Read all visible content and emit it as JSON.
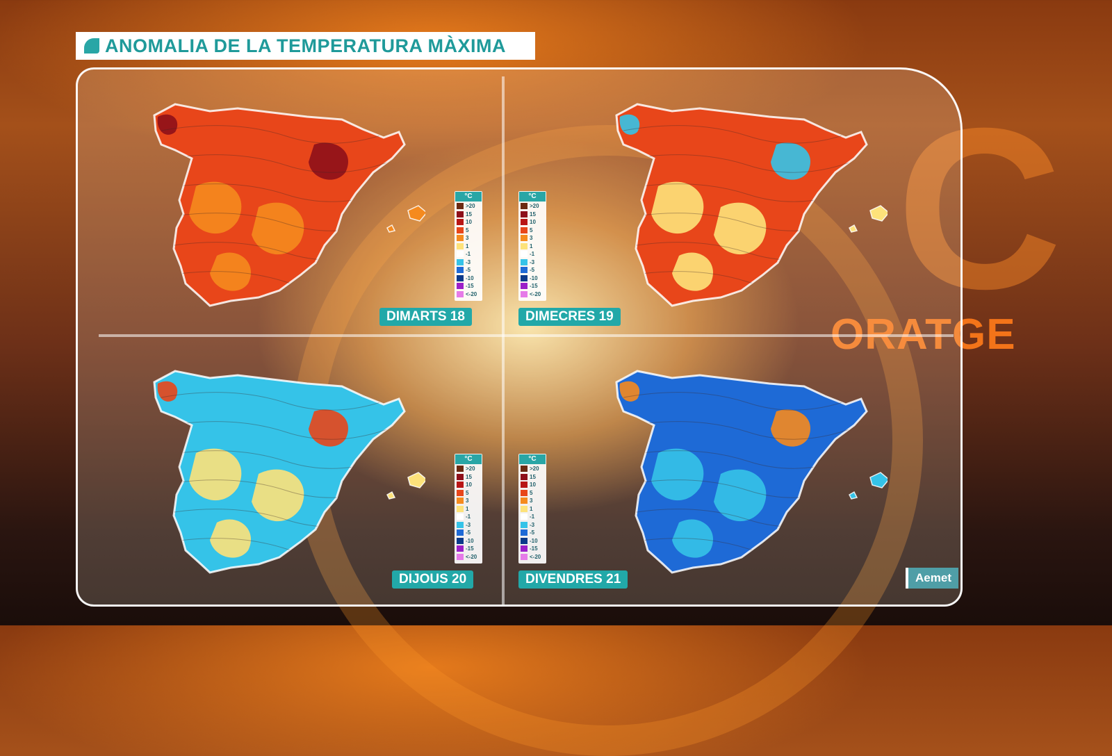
{
  "header": {
    "title": "ANOMALIA DE LA TEMPERATURA MÀXIMA"
  },
  "legend": {
    "unit": "°C",
    "entries": [
      {
        "label": ">20",
        "color": "#6b2a12"
      },
      {
        "label": "15",
        "color": "#8e0f1a"
      },
      {
        "label": "10",
        "color": "#b81515"
      },
      {
        "label": "5",
        "color": "#e8461a"
      },
      {
        "label": "3",
        "color": "#f58a1e"
      },
      {
        "label": "1",
        "color": "#fde27a"
      },
      {
        "label": "-1",
        "color": "#ffffff"
      },
      {
        "label": "-3",
        "color": "#35c3e8"
      },
      {
        "label": "-5",
        "color": "#1e6ad6"
      },
      {
        "label": "-10",
        "color": "#0b3a8a"
      },
      {
        "label": "-15",
        "color": "#9b1fc8"
      },
      {
        "label": "<-20",
        "color": "#e67be8"
      }
    ]
  },
  "maps": [
    {
      "day": "DIMARTS 18",
      "main_color": "#e8461a",
      "secondary_color": "#f58a1e",
      "accent_color": "#8e0f1a"
    },
    {
      "day": "DIMECRES 19",
      "main_color": "#e8461a",
      "secondary_color": "#fde27a",
      "accent_color": "#35c3e8"
    },
    {
      "day": "DIJOUS 20",
      "main_color": "#35c3e8",
      "secondary_color": "#fde27a",
      "accent_color": "#e8461a"
    },
    {
      "day": "DIVENDRES 21",
      "main_color": "#1e6ad6",
      "secondary_color": "#35c3e8",
      "accent_color": "#f58a1e"
    }
  ],
  "source": "Aemet",
  "brand": "ORATGE"
}
